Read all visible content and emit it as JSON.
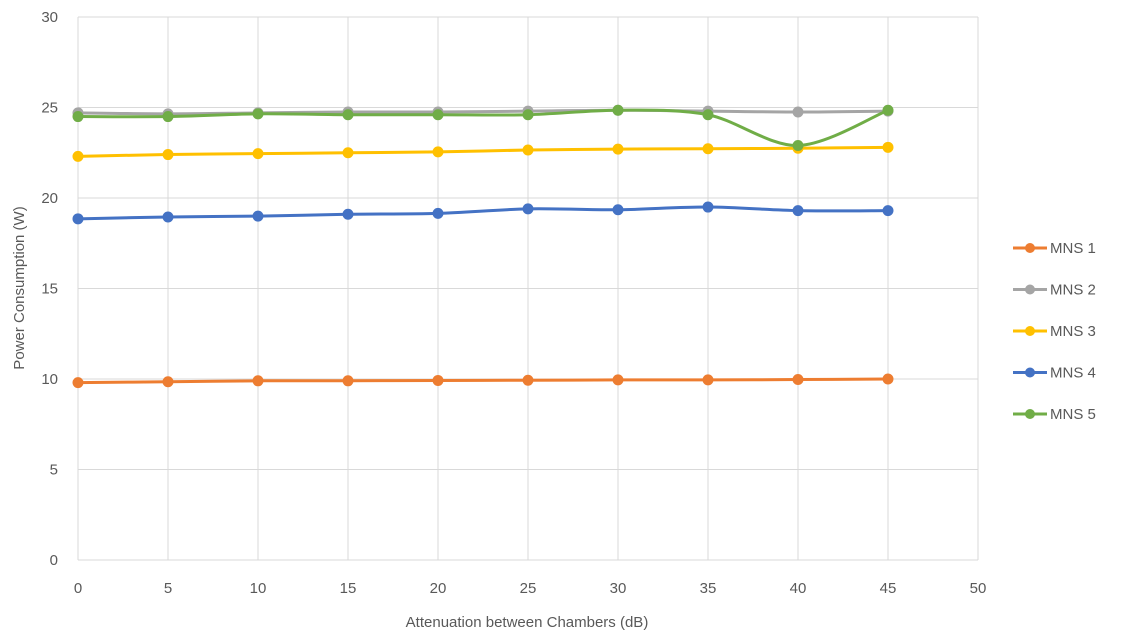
{
  "chart_data": {
    "type": "line",
    "title": "",
    "xlabel": "Attenuation between Chambers (dB)",
    "ylabel": "Power Consumption (W)",
    "xlim": [
      0,
      50
    ],
    "ylim": [
      0,
      30
    ],
    "xticks": [
      0,
      5,
      10,
      15,
      20,
      25,
      30,
      35,
      40,
      45,
      50
    ],
    "yticks": [
      0,
      5,
      10,
      15,
      20,
      25,
      30
    ],
    "grid": true,
    "legend_position": "right",
    "x": [
      0,
      5,
      10,
      15,
      20,
      25,
      30,
      35,
      40,
      45
    ],
    "series": [
      {
        "name": "MNS 1",
        "color": "#ED7D31",
        "values": [
          9.8,
          9.85,
          9.9,
          9.9,
          9.92,
          9.93,
          9.95,
          9.95,
          9.97,
          10.0
        ]
      },
      {
        "name": "MNS 2",
        "color": "#A5A5A5",
        "values": [
          24.7,
          24.65,
          24.7,
          24.75,
          24.75,
          24.8,
          24.85,
          24.8,
          24.75,
          24.8
        ]
      },
      {
        "name": "MNS 3",
        "color": "#FFC000",
        "values": [
          22.3,
          22.4,
          22.45,
          22.5,
          22.55,
          22.65,
          22.7,
          22.72,
          22.75,
          22.8
        ]
      },
      {
        "name": "MNS 4",
        "color": "#4472C4",
        "values": [
          18.85,
          18.95,
          19.0,
          19.1,
          19.15,
          19.4,
          19.35,
          19.5,
          19.3,
          19.3
        ]
      },
      {
        "name": "MNS 5",
        "color": "#70AD47",
        "values": [
          24.5,
          24.5,
          24.65,
          24.6,
          24.6,
          24.6,
          24.85,
          24.6,
          22.9,
          24.85
        ]
      }
    ]
  }
}
